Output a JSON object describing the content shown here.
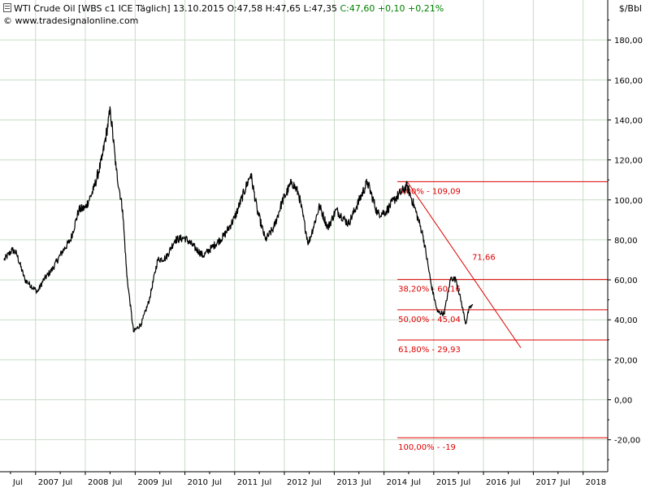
{
  "header": {
    "instrument": "WTI Crude Oil [WBS c1 ICE  Täglich] 13.10.2015",
    "ohlc": "O:47,58 H:47,65 L:47,35",
    "change": "C:47,60 +0,10 +0,21%",
    "watermark": "www.tradesignalonline.com",
    "copyright_symbol": "©",
    "unit": "$/Bbl"
  },
  "colors": {
    "background": "#ffffff",
    "grid": "#c8dcc8",
    "price_line": "#000000",
    "fib": "#dd0000",
    "change_text": "#008000"
  },
  "chart_data": {
    "type": "line",
    "series": [
      {
        "values": [
          {
            "date": "2006-05-15",
            "value": 70
          },
          {
            "date": "2006-07-15",
            "value": 75
          },
          {
            "date": "2006-08-15",
            "value": 73
          },
          {
            "date": "2006-10-15",
            "value": 60
          },
          {
            "date": "2007-01-15",
            "value": 54
          },
          {
            "date": "2007-03-01",
            "value": 60
          },
          {
            "date": "2007-05-01",
            "value": 65
          },
          {
            "date": "2007-07-15",
            "value": 74
          },
          {
            "date": "2007-09-15",
            "value": 80
          },
          {
            "date": "2007-11-15",
            "value": 95
          },
          {
            "date": "2008-01-01",
            "value": 96
          },
          {
            "date": "2008-03-01",
            "value": 105
          },
          {
            "date": "2008-05-01",
            "value": 120
          },
          {
            "date": "2008-07-03",
            "value": 145
          },
          {
            "date": "2008-08-15",
            "value": 115
          },
          {
            "date": "2008-10-01",
            "value": 95
          },
          {
            "date": "2008-11-01",
            "value": 62
          },
          {
            "date": "2008-12-20",
            "value": 34
          },
          {
            "date": "2009-02-15",
            "value": 38
          },
          {
            "date": "2009-04-15",
            "value": 50
          },
          {
            "date": "2009-06-15",
            "value": 70
          },
          {
            "date": "2009-08-15",
            "value": 71
          },
          {
            "date": "2009-10-20",
            "value": 80
          },
          {
            "date": "2010-01-01",
            "value": 81
          },
          {
            "date": "2010-05-15",
            "value": 72
          },
          {
            "date": "2010-07-15",
            "value": 76
          },
          {
            "date": "2010-10-15",
            "value": 82
          },
          {
            "date": "2011-01-01",
            "value": 91
          },
          {
            "date": "2011-04-29",
            "value": 113
          },
          {
            "date": "2011-06-15",
            "value": 95
          },
          {
            "date": "2011-08-15",
            "value": 80
          },
          {
            "date": "2011-10-15",
            "value": 86
          },
          {
            "date": "2011-12-15",
            "value": 99
          },
          {
            "date": "2012-02-25",
            "value": 109
          },
          {
            "date": "2012-04-15",
            "value": 103
          },
          {
            "date": "2012-06-25",
            "value": 78
          },
          {
            "date": "2012-09-15",
            "value": 97
          },
          {
            "date": "2012-11-15",
            "value": 86
          },
          {
            "date": "2013-01-15",
            "value": 95
          },
          {
            "date": "2013-04-15",
            "value": 88
          },
          {
            "date": "2013-06-15",
            "value": 97
          },
          {
            "date": "2013-09-01",
            "value": 109
          },
          {
            "date": "2013-11-15",
            "value": 93
          },
          {
            "date": "2014-01-15",
            "value": 94
          },
          {
            "date": "2014-03-15",
            "value": 100
          },
          {
            "date": "2014-06-20",
            "value": 107
          },
          {
            "date": "2014-08-15",
            "value": 96
          },
          {
            "date": "2014-10-15",
            "value": 82
          },
          {
            "date": "2014-12-15",
            "value": 57
          },
          {
            "date": "2015-01-28",
            "value": 44
          },
          {
            "date": "2015-03-18",
            "value": 43
          },
          {
            "date": "2015-05-06",
            "value": 61
          },
          {
            "date": "2015-06-15",
            "value": 60
          },
          {
            "date": "2015-07-25",
            "value": 48
          },
          {
            "date": "2015-08-24",
            "value": 38
          },
          {
            "date": "2015-09-15",
            "value": 45
          },
          {
            "date": "2015-10-13",
            "value": 47.6
          }
        ]
      }
    ],
    "fibonacci": [
      {
        "label": "0,00% - 109,09",
        "value": 109.09
      },
      {
        "label": "38,20% - 60,16",
        "value": 60.16
      },
      {
        "label": "50,00% - 45,04",
        "value": 45.04
      },
      {
        "label": "61,80% - 29,93",
        "value": 29.93
      },
      {
        "label": "100,00% - -19",
        "value": -19
      }
    ],
    "trendline": {
      "label": "71,66",
      "start": {
        "date": "2014-06-20",
        "value": 109.09
      },
      "end": {
        "date": "2016-10-01",
        "value": 26
      }
    },
    "y_axis": {
      "ticks": [
        -20,
        0,
        20,
        40,
        60,
        80,
        100,
        120,
        140,
        160,
        180
      ],
      "tick_labels": [
        "-20,00",
        "0,00",
        "20,00",
        "40,00",
        "60,00",
        "80,00",
        "100,00",
        "120,00",
        "140,00",
        "160,00",
        "180,00"
      ],
      "ylim": [
        -36,
        200
      ]
    },
    "x_axis": {
      "xlim": [
        "2006-04-15",
        "2018-07-01"
      ],
      "year_ticks": [
        {
          "date": "2007-01-01",
          "label": "2007"
        },
        {
          "date": "2008-01-01",
          "label": "2008"
        },
        {
          "date": "2009-01-01",
          "label": "2009"
        },
        {
          "date": "2010-01-01",
          "label": "2010"
        },
        {
          "date": "2011-01-01",
          "label": "2011"
        },
        {
          "date": "2012-01-01",
          "label": "2012"
        },
        {
          "date": "2013-01-01",
          "label": "2013"
        },
        {
          "date": "2014-01-01",
          "label": "2014"
        },
        {
          "date": "2015-01-01",
          "label": "2015"
        },
        {
          "date": "2016-01-01",
          "label": "2016"
        },
        {
          "date": "2017-01-01",
          "label": "2017"
        },
        {
          "date": "2018-01-01",
          "label": "2018"
        }
      ],
      "mid_ticks": [
        {
          "date": "2006-07-01",
          "label": "Jul"
        },
        {
          "date": "2007-07-01",
          "label": "Jul"
        },
        {
          "date": "2008-07-01",
          "label": "Jul"
        },
        {
          "date": "2009-07-01",
          "label": "Jul"
        },
        {
          "date": "2010-07-01",
          "label": "Jul"
        },
        {
          "date": "2011-07-01",
          "label": "Jul"
        },
        {
          "date": "2012-07-01",
          "label": "Jul"
        },
        {
          "date": "2013-07-01",
          "label": "Jul"
        },
        {
          "date": "2014-07-01",
          "label": "Jul"
        },
        {
          "date": "2015-07-01",
          "label": "Jul"
        },
        {
          "date": "2016-07-01",
          "label": "Jul"
        },
        {
          "date": "2017-07-01",
          "label": "Jul"
        }
      ]
    },
    "grid": true,
    "legend": "none"
  }
}
